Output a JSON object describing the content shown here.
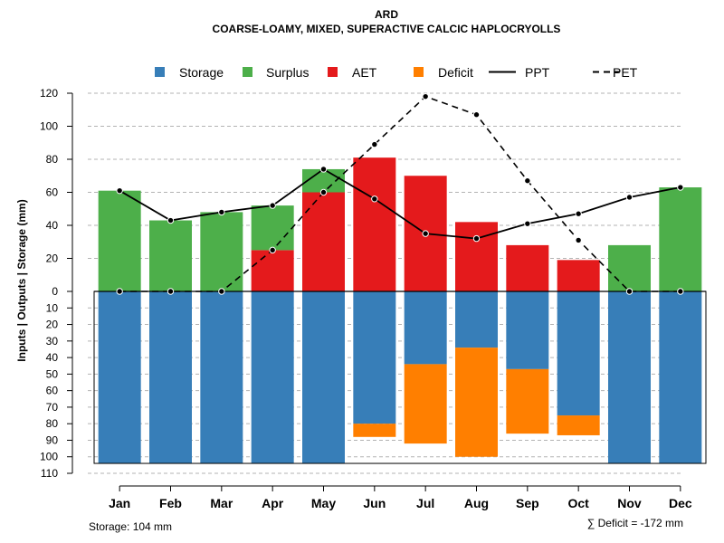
{
  "chart_data": {
    "type": "bar",
    "title": "ARD",
    "subtitle": "COARSE-LOAMY, MIXED, SUPERACTIVE CALCIC HAPLOCRYOLLS",
    "ylabel": "Inputs | Outputs | Storage    (mm)",
    "categories": [
      "Jan",
      "Feb",
      "Mar",
      "Apr",
      "May",
      "Jun",
      "Jul",
      "Aug",
      "Sep",
      "Oct",
      "Nov",
      "Dec"
    ],
    "ylim_top": [
      0,
      120
    ],
    "ylim_bottom": [
      0,
      110
    ],
    "yticks_top": [
      0,
      20,
      40,
      60,
      80,
      100,
      120
    ],
    "yticks_bottom": [
      10,
      20,
      30,
      40,
      50,
      60,
      70,
      80,
      90,
      100,
      110
    ],
    "storage_capacity": 104,
    "legend": [
      {
        "label": "Storage",
        "color": "#377eb8",
        "kind": "square"
      },
      {
        "label": "Surplus",
        "color": "#4daf4a",
        "kind": "square"
      },
      {
        "label": "AET",
        "color": "#e41a1c",
        "kind": "square"
      },
      {
        "label": "Deficit",
        "color": "#ff7f00",
        "kind": "square"
      },
      {
        "label": "PPT",
        "color": "#000000",
        "kind": "solid-line"
      },
      {
        "label": "PET",
        "color": "#000000",
        "kind": "dashed-line"
      }
    ],
    "series": [
      {
        "name": "PPT",
        "values": [
          61,
          43,
          48,
          52,
          74,
          56,
          35,
          32,
          41,
          47,
          57,
          63
        ]
      },
      {
        "name": "PET",
        "values": [
          0,
          0,
          0,
          25,
          60,
          89,
          118,
          107,
          67,
          31,
          0,
          0
        ]
      },
      {
        "name": "AET",
        "values": [
          0,
          0,
          0,
          25,
          60,
          81,
          70,
          42,
          28,
          19,
          0,
          0
        ]
      },
      {
        "name": "Surplus",
        "values": [
          61,
          43,
          48,
          27,
          14,
          0,
          0,
          0,
          0,
          0,
          28,
          63
        ]
      },
      {
        "name": "Storage",
        "values": [
          104,
          104,
          104,
          104,
          104,
          80,
          44,
          34,
          47,
          75,
          104,
          104
        ]
      },
      {
        "name": "Deficit",
        "values": [
          0,
          0,
          0,
          0,
          0,
          8,
          48,
          66,
          39,
          12,
          0,
          0
        ]
      }
    ],
    "footer_left": "Storage: 104 mm",
    "footer_right": "∑ Deficit = -172 mm",
    "colors": {
      "storage": "#377eb8",
      "surplus": "#4daf4a",
      "aet": "#e41a1c",
      "deficit": "#ff7f00",
      "line": "#000000",
      "grid": "#b3b3b3"
    }
  }
}
